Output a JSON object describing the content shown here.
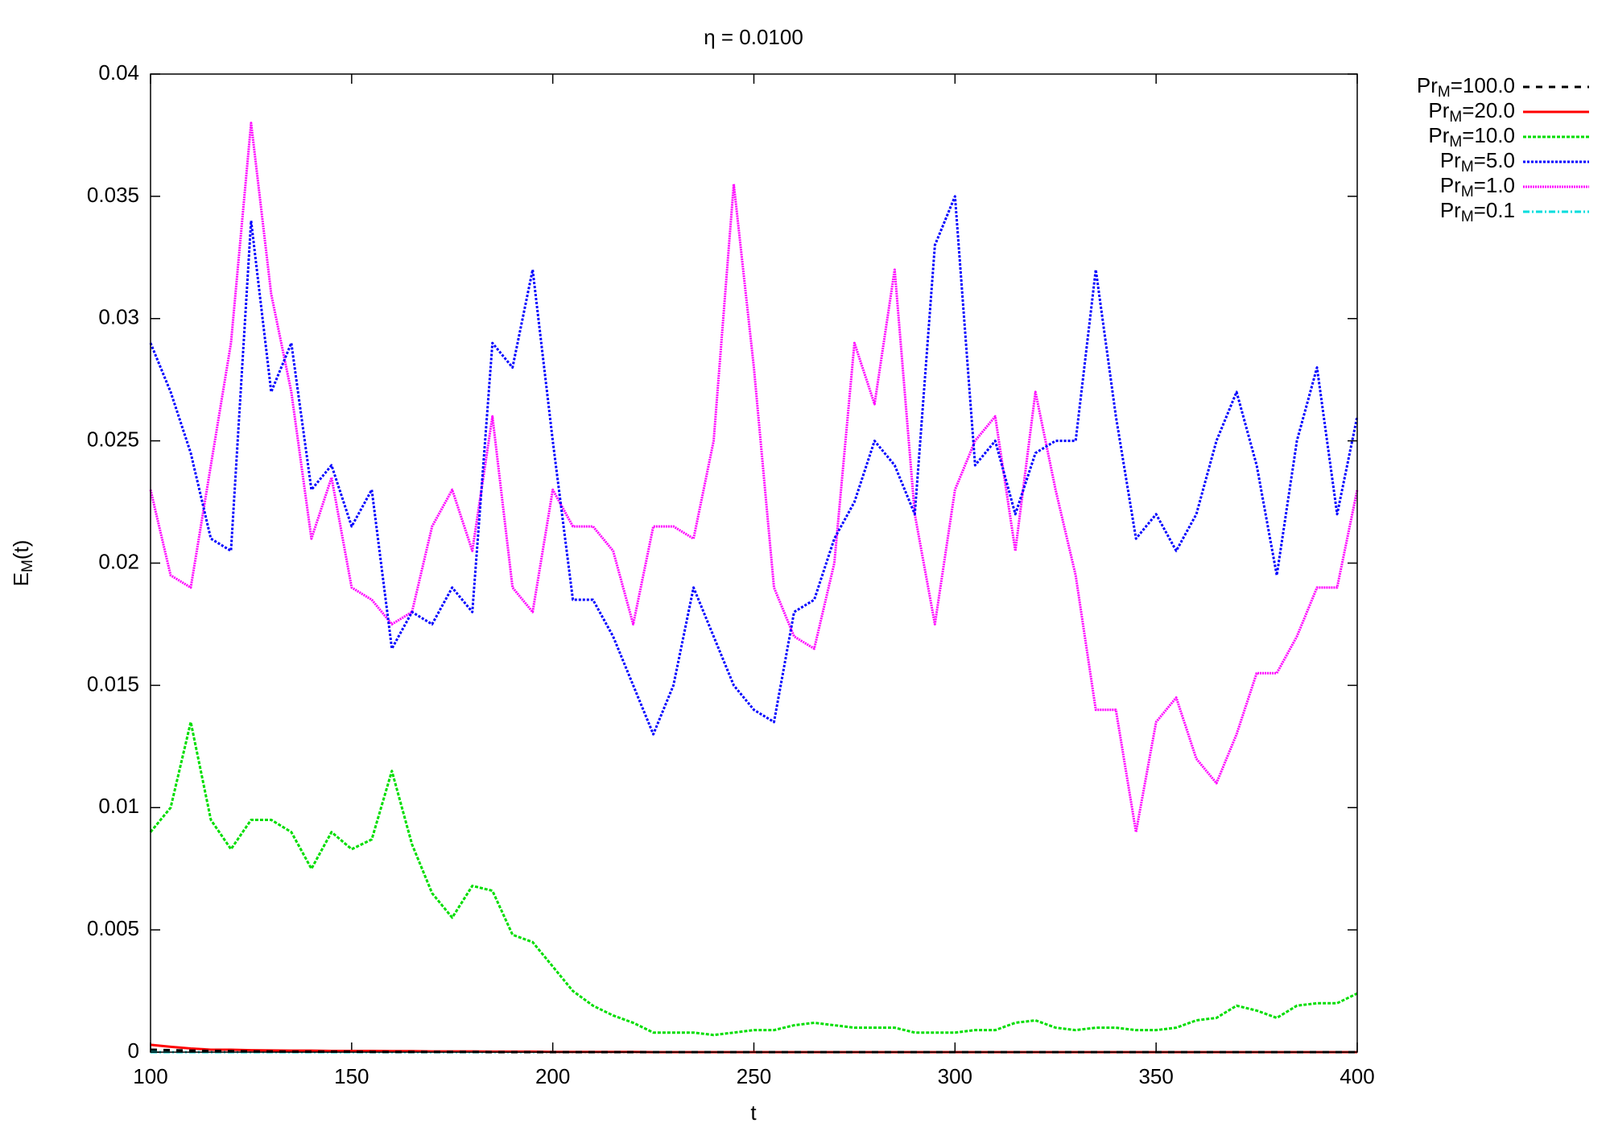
{
  "chart_data": {
    "type": "line",
    "title": "η = 0.0100",
    "x_label": "t",
    "y_label": "EM(t)",
    "x": [
      100,
      105,
      110,
      115,
      120,
      125,
      130,
      135,
      140,
      145,
      150,
      155,
      160,
      165,
      170,
      175,
      180,
      185,
      190,
      195,
      200,
      205,
      210,
      215,
      220,
      225,
      230,
      235,
      240,
      245,
      250,
      255,
      260,
      265,
      270,
      275,
      280,
      285,
      290,
      295,
      300,
      305,
      310,
      315,
      320,
      325,
      330,
      335,
      340,
      345,
      350,
      355,
      360,
      365,
      370,
      375,
      380,
      385,
      390,
      395,
      400
    ],
    "xlim": [
      100,
      400
    ],
    "xticks": [
      100,
      150,
      200,
      250,
      300,
      350,
      400
    ],
    "ylim": [
      0,
      0.04
    ],
    "yticks": [
      0,
      0.005,
      0.01,
      0.015,
      0.02,
      0.025,
      0.03,
      0.035,
      0.04
    ],
    "legend": "outside-right",
    "series": [
      {
        "name": "PrM=100.0",
        "color": "#000000",
        "dash": "8,8",
        "values": [
          0.0001,
          8e-05,
          6e-05,
          5e-05,
          4e-05,
          3e-05,
          3e-05,
          2e-05,
          2e-05,
          2e-05,
          2e-05,
          1e-05,
          1e-05,
          1e-05,
          1e-05,
          1e-05,
          1e-05,
          0,
          0,
          0,
          0,
          0,
          0,
          0,
          0,
          0,
          0,
          0,
          0,
          0,
          0,
          0,
          0,
          0,
          0,
          0,
          0,
          0,
          0,
          0,
          0,
          0,
          0,
          0,
          0,
          0,
          0,
          0,
          0,
          0,
          0,
          0,
          0,
          0,
          0,
          0,
          0,
          0,
          0,
          0,
          0
        ]
      },
      {
        "name": "PrM=20.0",
        "color": "#ff0000",
        "dash": "",
        "values": [
          0.0003,
          0.00022,
          0.00015,
          0.0001,
          0.0001,
          8e-05,
          7e-05,
          6e-05,
          6e-05,
          5e-05,
          5e-05,
          5e-05,
          4e-05,
          4e-05,
          3e-05,
          3e-05,
          3e-05,
          2e-05,
          2e-05,
          2e-05,
          1e-05,
          1e-05,
          1e-05,
          1e-05,
          1e-05,
          0,
          0,
          0,
          0,
          0,
          0,
          0,
          0,
          0,
          0,
          0,
          0,
          0,
          0,
          0,
          0,
          0,
          0,
          0,
          0,
          0,
          0,
          0,
          0,
          0,
          0,
          0,
          0,
          0,
          0,
          0,
          0,
          0,
          0,
          0,
          0
        ]
      },
      {
        "name": "PrM=10.0",
        "color": "#00dd00",
        "dash": "4,2",
        "values": [
          0.009,
          0.01,
          0.0135,
          0.0095,
          0.0083,
          0.0095,
          0.0095,
          0.009,
          0.0075,
          0.009,
          0.0083,
          0.0087,
          0.0115,
          0.0085,
          0.0065,
          0.0055,
          0.0068,
          0.0066,
          0.0048,
          0.0045,
          0.0035,
          0.0025,
          0.0019,
          0.0015,
          0.0012,
          0.0008,
          0.0008,
          0.0008,
          0.0007,
          0.0008,
          0.0009,
          0.0009,
          0.0011,
          0.0012,
          0.0011,
          0.001,
          0.001,
          0.001,
          0.0008,
          0.0008,
          0.0008,
          0.0009,
          0.0009,
          0.0012,
          0.0013,
          0.001,
          0.0009,
          0.001,
          0.001,
          0.0009,
          0.0009,
          0.001,
          0.0013,
          0.0014,
          0.0019,
          0.0017,
          0.0014,
          0.0019,
          0.002,
          0.002,
          0.0024
        ]
      },
      {
        "name": "PrM=5.0",
        "color": "#0000ff",
        "dash": "3,2",
        "values": [
          0.029,
          0.027,
          0.0245,
          0.021,
          0.0205,
          0.034,
          0.027,
          0.029,
          0.023,
          0.024,
          0.0215,
          0.023,
          0.0165,
          0.018,
          0.0175,
          0.019,
          0.018,
          0.029,
          0.028,
          0.032,
          0.025,
          0.0185,
          0.0185,
          0.017,
          0.015,
          0.013,
          0.015,
          0.019,
          0.017,
          0.015,
          0.014,
          0.0135,
          0.018,
          0.0185,
          0.021,
          0.0225,
          0.025,
          0.024,
          0.022,
          0.033,
          0.035,
          0.024,
          0.025,
          0.022,
          0.0245,
          0.025,
          0.025,
          0.032,
          0.026,
          0.021,
          0.022,
          0.0205,
          0.022,
          0.025,
          0.027,
          0.024,
          0.0195,
          0.025,
          0.028,
          0.022,
          0.026
        ]
      },
      {
        "name": "PrM=1.0",
        "color": "#ff00ff",
        "dash": "2,1",
        "values": [
          0.023,
          0.0195,
          0.019,
          0.024,
          0.029,
          0.038,
          0.031,
          0.027,
          0.021,
          0.0235,
          0.019,
          0.0185,
          0.0175,
          0.018,
          0.0215,
          0.023,
          0.0205,
          0.026,
          0.019,
          0.018,
          0.023,
          0.0215,
          0.0215,
          0.0205,
          0.0175,
          0.0215,
          0.0215,
          0.021,
          0.025,
          0.0355,
          0.028,
          0.019,
          0.017,
          0.0165,
          0.02,
          0.029,
          0.0265,
          0.032,
          0.022,
          0.0175,
          0.023,
          0.025,
          0.026,
          0.0205,
          0.027,
          0.023,
          0.0195,
          0.014,
          0.014,
          0.009,
          0.0135,
          0.0145,
          0.012,
          0.011,
          0.013,
          0.0155,
          0.0155,
          0.017,
          0.019,
          0.019,
          0.023
        ]
      },
      {
        "name": "PrM=0.1",
        "color": "#00dddd",
        "dash": "8,3,2,3",
        "values": [
          0,
          0,
          0,
          0,
          0,
          0,
          0,
          0,
          0,
          0,
          0,
          0,
          0,
          0,
          0,
          0,
          0,
          0,
          0,
          0,
          0,
          0,
          0,
          0,
          0,
          0,
          0,
          0,
          0,
          0,
          0,
          0,
          0,
          0,
          0,
          0,
          0,
          0,
          0,
          0,
          0,
          0,
          0,
          0,
          0,
          0,
          0,
          0,
          0,
          0,
          0,
          0,
          0,
          0,
          0,
          0,
          0,
          0,
          0,
          0,
          0
        ]
      }
    ]
  }
}
